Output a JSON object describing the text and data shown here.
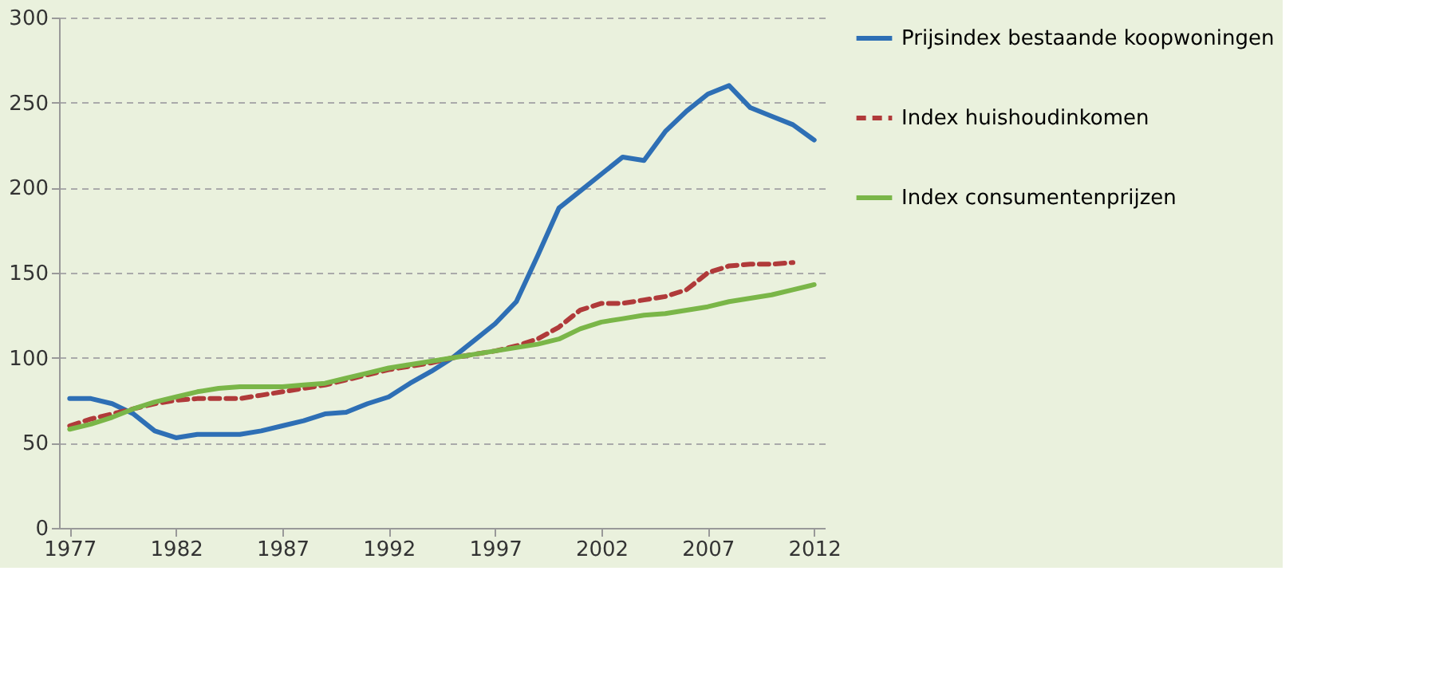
{
  "chart_data": {
    "type": "line",
    "x": [
      1977,
      1978,
      1979,
      1980,
      1981,
      1982,
      1983,
      1984,
      1985,
      1986,
      1987,
      1988,
      1989,
      1990,
      1991,
      1992,
      1993,
      1994,
      1995,
      1996,
      1997,
      1998,
      1999,
      2000,
      2001,
      2002,
      2003,
      2004,
      2005,
      2006,
      2007,
      2008,
      2009,
      2010,
      2011,
      2012
    ],
    "series": [
      {
        "name": "Prijsindex bestaande koopwoningen",
        "color": "#2e6fb5",
        "line_style": "solid",
        "values": [
          76,
          76,
          73,
          67,
          57,
          53,
          55,
          55,
          55,
          57,
          60,
          63,
          67,
          68,
          73,
          77,
          85,
          92,
          100,
          110,
          120,
          133,
          160,
          188,
          198,
          208,
          218,
          216,
          233,
          245,
          255,
          260,
          247,
          242,
          237,
          228
        ]
      },
      {
        "name": "Index huishoudinkomen",
        "color": "#b03a3a",
        "line_style": "dashed",
        "values": [
          60,
          64,
          67,
          70,
          73,
          75,
          76,
          76,
          76,
          78,
          80,
          82,
          84,
          87,
          90,
          93,
          95,
          97,
          100,
          102,
          104,
          107,
          111,
          118,
          128,
          132,
          132,
          134,
          136,
          140,
          150,
          154,
          155,
          155,
          156,
          null
        ]
      },
      {
        "name": "Index consumentenprijzen",
        "color": "#7ab648",
        "line_style": "solid",
        "values": [
          58,
          61,
          65,
          70,
          74,
          77,
          80,
          82,
          83,
          83,
          83,
          84,
          85,
          88,
          91,
          94,
          96,
          98,
          100,
          102,
          104,
          106,
          108,
          111,
          117,
          121,
          123,
          125,
          126,
          128,
          130,
          133,
          135,
          137,
          140,
          143
        ]
      }
    ],
    "xlim": [
      1976.5,
      2012.5
    ],
    "xticks": [
      1977,
      1982,
      1987,
      1992,
      1997,
      2002,
      2007,
      2012
    ],
    "ylim": [
      0,
      300
    ],
    "yticks": [
      0,
      50,
      100,
      150,
      200,
      250,
      300
    ],
    "grid": "y",
    "legend": "right"
  }
}
